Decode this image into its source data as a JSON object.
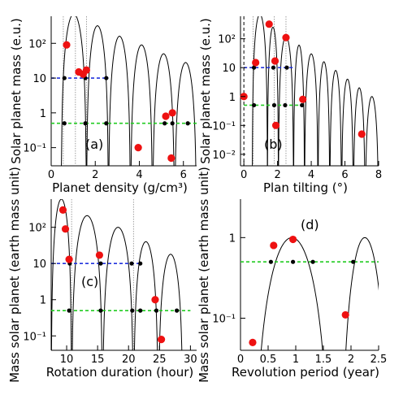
{
  "chart_data": [
    {
      "id": "a",
      "type": "line",
      "panel_label": "(a)",
      "xlabel": "Planet density (g/cm³)",
      "ylabel": "Solar planet mass (e.u.)",
      "x_range": [
        0,
        6.6
      ],
      "y_range": [
        0.03,
        600
      ],
      "y_scale": "log",
      "x_ticks": [
        "0",
        "2",
        "4",
        "6"
      ],
      "y_ticks": [
        "10²",
        "10",
        "1",
        "10⁻¹"
      ],
      "lobe_zeros": [
        0.45,
        1.6,
        2.6,
        3.6,
        4.6,
        5.6,
        6.6
      ],
      "lobe_peak_mass": [
        700,
        320,
        160,
        90,
        50,
        28
      ],
      "dotted_lines_x": [
        0.55,
        1.1,
        1.6
      ],
      "reference_lines": [
        {
          "color": "#2233dd",
          "y": 10,
          "x_range": [
            0,
            2.6
          ],
          "points_x": [
            0.6,
            1.55,
            2.5
          ]
        },
        {
          "color": "#22cc22",
          "y": 0.5,
          "x_range": [
            0,
            6.6
          ],
          "points_x": [
            0.6,
            1.55,
            2.5,
            5.15,
            5.5,
            6.2
          ]
        }
      ],
      "observed_points": [
        {
          "x": 0.7,
          "y": 90
        },
        {
          "x": 1.25,
          "y": 15
        },
        {
          "x": 1.6,
          "y": 17
        },
        {
          "x": 1.45,
          "y": 13
        },
        {
          "x": 3.95,
          "y": 0.1
        },
        {
          "x": 5.2,
          "y": 0.8
        },
        {
          "x": 5.5,
          "y": 1.0
        },
        {
          "x": 5.45,
          "y": 0.05
        }
      ]
    },
    {
      "id": "b",
      "type": "line",
      "panel_label": "(b)",
      "xlabel": "Plan tilting (°)",
      "ylabel": "Solar planet mass (e.u.)",
      "x_range": [
        -0.2,
        8
      ],
      "y_range": [
        0.004,
        600
      ],
      "y_scale": "log",
      "x_ticks": [
        "0",
        "2",
        "4",
        "6",
        "8"
      ],
      "y_ticks": [
        "10²",
        "10",
        "1",
        "10⁻¹",
        "10⁻²"
      ],
      "lobe_zeros": [
        0.5,
        1.4,
        2.05,
        2.95,
        3.6,
        4.4,
        5.1,
        5.8,
        6.5,
        7.2,
        8.0
      ],
      "lobe_peak_mass": [
        700,
        250,
        120,
        60,
        30,
        16,
        8,
        4,
        2,
        1
      ],
      "dotted_lines_x": [
        0.55,
        1.8,
        2.5
      ],
      "reference_lines": [
        {
          "color": "#2233dd",
          "y": 10,
          "x_range": [
            0,
            2.95
          ],
          "points_x": [
            0.6,
            1.75,
            2.55
          ]
        },
        {
          "color": "#22cc22",
          "y": 0.5,
          "x_range": [
            0,
            3.6
          ],
          "points_x": [
            0.6,
            1.8,
            2.45,
            3.45
          ]
        }
      ],
      "observed_points": [
        {
          "x": 0.0,
          "y": 1.0
        },
        {
          "x": 0.7,
          "y": 15
        },
        {
          "x": 1.5,
          "y": 320
        },
        {
          "x": 1.85,
          "y": 17
        },
        {
          "x": 2.5,
          "y": 110
        },
        {
          "x": 1.9,
          "y": 0.1
        },
        {
          "x": 3.5,
          "y": 0.8
        },
        {
          "x": 7.0,
          "y": 0.05
        }
      ]
    },
    {
      "id": "c",
      "type": "line",
      "panel_label": "(c)",
      "xlabel": "Rotation duration (hour)",
      "ylabel": "Mass solar planet (earth mass unit)",
      "x_range": [
        7.5,
        31
      ],
      "y_range": [
        0.04,
        600
      ],
      "y_scale": "log",
      "x_ticks": [
        "10",
        "15",
        "20",
        "25",
        "30"
      ],
      "y_ticks": [
        "10²",
        "10",
        "1",
        "10⁻¹"
      ],
      "lobe_zeros": [
        7.5,
        10.8,
        15.8,
        20.8,
        24.8,
        28.8
      ],
      "lobe_peak_mass": [
        600,
        210,
        100,
        40,
        18
      ],
      "dotted_lines_x": [
        10.8,
        20.8
      ],
      "reference_lines": [
        {
          "color": "#2233dd",
          "y": 10,
          "x_range": [
            7.5,
            22
          ],
          "points_x": [
            10.5,
            15.5,
            20.5,
            21.9
          ]
        },
        {
          "color": "#22cc22",
          "y": 0.5,
          "x_range": [
            7.5,
            30
          ],
          "points_x": [
            10.4,
            15.5,
            20.6,
            21.9,
            24.5,
            27.8
          ]
        }
      ],
      "observed_points": [
        {
          "x": 9.4,
          "y": 300
        },
        {
          "x": 9.8,
          "y": 90
        },
        {
          "x": 10.4,
          "y": 13
        },
        {
          "x": 15.3,
          "y": 17
        },
        {
          "x": 24.3,
          "y": 1.0
        },
        {
          "x": 25.3,
          "y": 0.08
        }
      ]
    },
    {
      "id": "d",
      "type": "line",
      "panel_label": "(d)",
      "xlabel": "Revolution period (year)",
      "ylabel": "Mass solar planet (earth mass unit)",
      "x_range": [
        0,
        2.5
      ],
      "y_range": [
        0.04,
        3
      ],
      "y_scale": "log",
      "x_ticks": [
        "0",
        "0.5",
        "1",
        "1.5",
        "2",
        "2.5"
      ],
      "y_ticks": [
        "1",
        "10⁻¹"
      ],
      "lobe_zeros": [
        0.2,
        1.66,
        1.8,
        2.7
      ],
      "lobe_peak_mass": [
        1.0,
        0.0,
        1.0
      ],
      "dotted_lines_x": [],
      "reference_lines": [
        {
          "color": "#22cc22",
          "y": 0.5,
          "x_range": [
            0,
            2.5
          ],
          "points_x": [
            0.55,
            0.95,
            1.31,
            2.04
          ]
        }
      ],
      "observed_points": [
        {
          "x": 0.22,
          "y": 0.05
        },
        {
          "x": 0.6,
          "y": 0.8
        },
        {
          "x": 0.95,
          "y": 0.95
        },
        {
          "x": 1.9,
          "y": 0.11
        }
      ]
    }
  ]
}
